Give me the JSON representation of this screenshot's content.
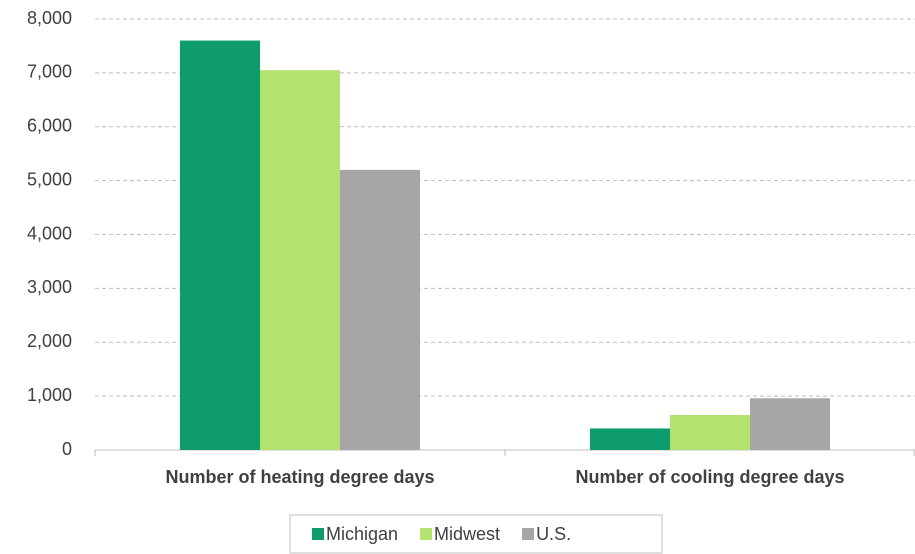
{
  "chart_data": {
    "type": "bar",
    "categories": [
      "Number of heating degree days",
      "Number of cooling degree days"
    ],
    "series": [
      {
        "name": "Michigan",
        "color": "#0e9b6e",
        "values": [
          7600,
          400
        ]
      },
      {
        "name": "Midwest",
        "color": "#b3e36e",
        "values": [
          7050,
          650
        ]
      },
      {
        "name": "U.S.",
        "color": "#a6a6a6",
        "values": [
          5200,
          960
        ]
      }
    ],
    "ylim": [
      0,
      8000
    ],
    "yticks": [
      0,
      {
        "value": 1000,
        "label": "1,000"
      },
      {
        "value": 2000,
        "label": "2,000"
      },
      {
        "value": 3000,
        "label": "3,000"
      },
      {
        "value": 4000,
        "label": "4,000"
      },
      {
        "value": 5000,
        "label": "5,000"
      },
      {
        "value": 6000,
        "label": "6,000"
      },
      {
        "value": 7000,
        "label": "7,000"
      },
      {
        "value": 8000,
        "label": "8,000"
      }
    ],
    "grid": true,
    "legend": "bottom"
  }
}
